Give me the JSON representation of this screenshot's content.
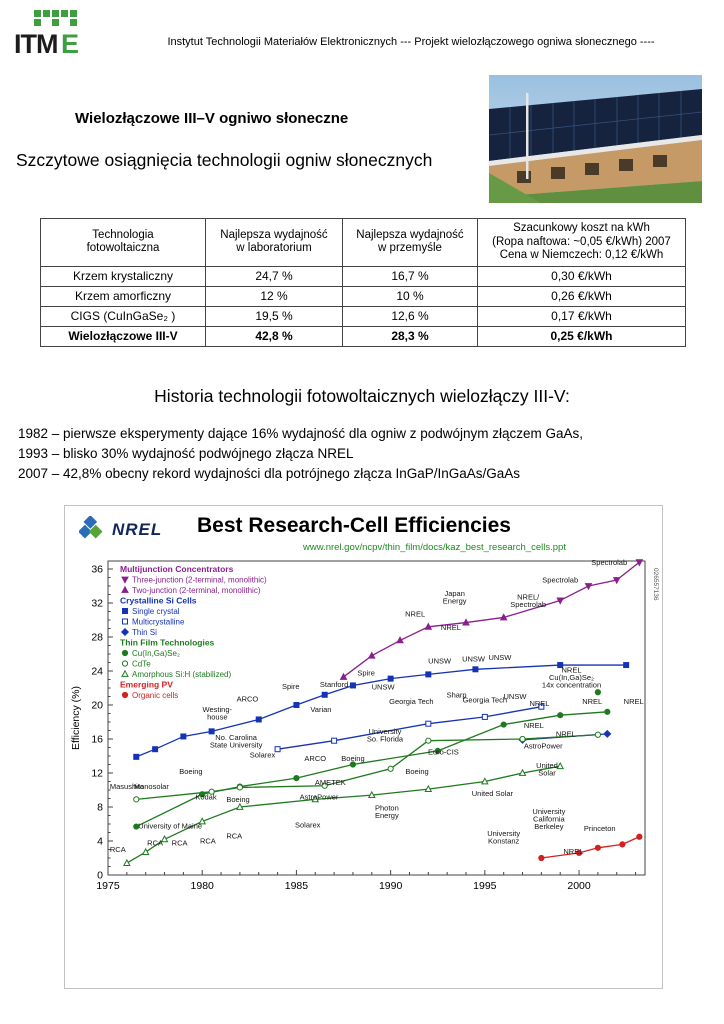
{
  "header": {
    "logo_text": "ITME",
    "text": "Instytut Technologii Materiałów Elektronicznych --- Projekt wielozłączowego ogniwa słonecznego ----"
  },
  "title": "Wielozłączowe III–V ogniwo słoneczne",
  "subtitle": "Szczytowe osiągnięcia technologii ogniw słonecznych",
  "table": {
    "headers": [
      "Technologia\nfotowoltaiczna",
      "Najlepsza wydajność\nw laboratorium",
      "Najlepsza wydajność\nw przemyśle",
      "Szacunkowy koszt na kWh\n(Ropa naftowa: ~0,05 €/kWh) 2007\nCena w Niemczech: 0,12 €/kWh"
    ],
    "rows": [
      {
        "cells": [
          "Krzem krystaliczny",
          "24,7 %",
          "16,7 %",
          "0,30 €/kWh"
        ],
        "bold": false
      },
      {
        "cells": [
          "Krzem amorficzny",
          "12 %",
          "10 %",
          "0,26 €/kWh"
        ],
        "bold": false
      },
      {
        "cells": [
          "CIGS (CuInGaSe₂ )",
          "19,5 %",
          "12,6 %",
          "0,17 €/kWh"
        ],
        "bold": false
      },
      {
        "cells": [
          "Wielozłączowe III-V",
          "42,8 %",
          "28,3 %",
          "0,25 €/kWh"
        ],
        "bold": true
      }
    ]
  },
  "history": {
    "heading": "Historia technologii fotowoltaicznych wielozłączy III-V:",
    "lines": [
      "1982 – pierwsze eksperymenty dające 16% wydajność dla ogniw z podwójnym złączem GaAs,",
      "1993 – blisko 30% wydajność podwójnego złącza NREL",
      "2007 – 42,8% obecny rekord wydajności dla potrójnego złącza InGaP/InGaAs/GaAs"
    ]
  },
  "chart_data": {
    "type": "line",
    "title": "Best Research-Cell Efficiencies",
    "url": "www.nrel.gov/ncpv/thin_film/docs/kaz_best_research_cells.ppt",
    "logo_label": "NREL",
    "ylabel": "Efficiency (%)",
    "xlim": [
      1975,
      2003.5
    ],
    "ylim": [
      0,
      36
    ],
    "x_ticks": [
      1975,
      1980,
      1985,
      1990,
      1995,
      2000
    ],
    "y_ticks": [
      0,
      4,
      8,
      12,
      16,
      20,
      24,
      28,
      32,
      36
    ],
    "side_code": "026557136",
    "grid": false,
    "legend_position": "upper-left",
    "legend": [
      {
        "title": "Multijunction Concentrators",
        "color": "#8a1f8f",
        "items": [
          {
            "marker": "triangle-down",
            "filled": true,
            "label": "Three-junction (2-terminal, monolithic)"
          },
          {
            "marker": "triangle-up",
            "filled": true,
            "label": "Two-junction (2-terminal, monolithic)"
          }
        ]
      },
      {
        "title": "Crystalline Si Cells",
        "color": "#1533b4",
        "items": [
          {
            "marker": "square",
            "filled": true,
            "label": "Single crystal"
          },
          {
            "marker": "square",
            "filled": false,
            "label": "Multicrystalline"
          },
          {
            "marker": "diamond",
            "filled": true,
            "label": "Thin Si"
          }
        ]
      },
      {
        "title": "Thin Film Technologies",
        "color": "#1f7a1f",
        "items": [
          {
            "marker": "circle",
            "filled": true,
            "label": "Cu(In,Ga)Se₂"
          },
          {
            "marker": "circle",
            "filled": false,
            "label": "CdTe"
          },
          {
            "marker": "triangle-up",
            "filled": false,
            "label": "Amorphous Si:H (stabilized)"
          }
        ]
      },
      {
        "title": "Emerging PV",
        "color": "#d42020",
        "items": [
          {
            "marker": "circle",
            "filled": true,
            "label": "Organic cells"
          }
        ]
      }
    ],
    "series": [
      {
        "name": "Three-junction (2-terminal, monolithic)",
        "color": "#8a1f8f",
        "marker": "triangle-down",
        "filled": true,
        "points": [
          [
            1999,
            32.3
          ],
          [
            2000.5,
            34.0
          ],
          [
            2002,
            34.7
          ],
          [
            2003.2,
            36.8
          ]
        ]
      },
      {
        "name": "Two-junction (2-terminal, monolithic)",
        "color": "#8a1f8f",
        "marker": "triangle-up",
        "filled": true,
        "points": [
          [
            1987.5,
            23.3
          ],
          [
            1989,
            25.8
          ],
          [
            1990.5,
            27.6
          ],
          [
            1992,
            29.2
          ],
          [
            1994,
            29.7
          ],
          [
            1996,
            30.3
          ]
        ]
      },
      {
        "name": "Single crystal Si",
        "color": "#1533b4",
        "marker": "square",
        "filled": true,
        "points": [
          [
            1976.5,
            13.9
          ],
          [
            1977.5,
            14.8
          ],
          [
            1979,
            16.3
          ],
          [
            1980.5,
            16.9
          ],
          [
            1983,
            18.3
          ],
          [
            1985,
            20.0
          ],
          [
            1986.5,
            21.2
          ],
          [
            1988,
            22.3
          ],
          [
            1990,
            23.1
          ],
          [
            1992,
            23.6
          ],
          [
            1994.5,
            24.2
          ],
          [
            1999,
            24.7
          ],
          [
            2002.5,
            24.7
          ]
        ]
      },
      {
        "name": "Multicrystalline Si",
        "color": "#1533b4",
        "marker": "square",
        "filled": false,
        "points": [
          [
            1984,
            14.8
          ],
          [
            1987,
            15.8
          ],
          [
            1992,
            17.8
          ],
          [
            1995,
            18.6
          ],
          [
            1998,
            19.8
          ]
        ]
      },
      {
        "name": "Thin Si",
        "color": "#1533b4",
        "marker": "diamond",
        "filled": true,
        "points": [
          [
            1997,
            15.9
          ],
          [
            2001.5,
            16.6
          ]
        ]
      },
      {
        "name": "Cu(In,Ga)Se₂",
        "color": "#1f7a1f",
        "marker": "circle",
        "filled": true,
        "points": [
          [
            1976.5,
            5.7
          ],
          [
            1980,
            9.5
          ],
          [
            1982,
            10.4
          ],
          [
            1985,
            11.4
          ],
          [
            1988,
            13.0
          ],
          [
            1992.5,
            14.6
          ],
          [
            1996,
            17.7
          ],
          [
            1999,
            18.8
          ],
          [
            2001.5,
            19.2
          ]
        ]
      },
      {
        "name": "Cu(In,Ga)Se₂ 14x concentration",
        "color": "#1f7a1f",
        "marker": "circle",
        "filled": true,
        "points": [
          [
            2001,
            21.5
          ]
        ]
      },
      {
        "name": "CdTe",
        "color": "#1f7a1f",
        "marker": "circle",
        "filled": false,
        "points": [
          [
            1976.5,
            8.9
          ],
          [
            1980.5,
            9.8
          ],
          [
            1982,
            10.3
          ],
          [
            1986.5,
            10.5
          ],
          [
            1990,
            12.5
          ],
          [
            1992,
            15.8
          ],
          [
            1997,
            16.0
          ],
          [
            2001,
            16.5
          ]
        ]
      },
      {
        "name": "Amorphous Si:H (stabilized)",
        "color": "#1f7a1f",
        "marker": "triangle-up",
        "filled": false,
        "points": [
          [
            1976,
            1.4
          ],
          [
            1977,
            2.7
          ],
          [
            1978,
            4.2
          ],
          [
            1980,
            6.3
          ],
          [
            1982,
            8.0
          ],
          [
            1986,
            8.9
          ],
          [
            1989,
            9.4
          ],
          [
            1992,
            10.1
          ],
          [
            1995,
            11.0
          ],
          [
            1997,
            12.0
          ],
          [
            1999,
            12.8
          ]
        ]
      },
      {
        "name": "Organic cells",
        "color": "#d42020",
        "marker": "circle",
        "filled": true,
        "points": [
          [
            1998,
            2.0
          ],
          [
            2000,
            2.6
          ],
          [
            2001,
            3.2
          ],
          [
            2002.3,
            3.6
          ],
          [
            2003.2,
            4.5
          ]
        ]
      }
    ],
    "connectors": [
      {
        "from": [
          1996,
          30.3
        ],
        "to": [
          1999,
          32.3
        ],
        "color": "#8a1f8f"
      }
    ],
    "annotations": [
      {
        "text": "Spectrolab",
        "x": 2001.6,
        "y": 36.5
      },
      {
        "text": "Spectrolab",
        "x": 1999.0,
        "y": 34.4
      },
      {
        "text": "NREL/\nSpectrolab",
        "x": 1997.3,
        "y": 32.4
      },
      {
        "text": "Japan\nEnergy",
        "x": 1993.4,
        "y": 32.8
      },
      {
        "text": "NREL",
        "x": 1991.3,
        "y": 30.4
      },
      {
        "text": "NREL",
        "x": 1993.2,
        "y": 28.8
      },
      {
        "text": "UNSW",
        "x": 1992.6,
        "y": 24.9
      },
      {
        "text": "UNSW",
        "x": 1994.4,
        "y": 25.1
      },
      {
        "text": "UNSW",
        "x": 1995.8,
        "y": 25.3
      },
      {
        "text": "UNSW",
        "x": 1989.6,
        "y": 21.8
      },
      {
        "text": "Spire",
        "x": 1984.7,
        "y": 21.9
      },
      {
        "text": "Stanford",
        "x": 1987.0,
        "y": 22.1
      },
      {
        "text": "Spire",
        "x": 1988.7,
        "y": 23.5
      },
      {
        "text": "ARCO",
        "x": 1982.4,
        "y": 20.4
      },
      {
        "text": "Varian",
        "x": 1986.3,
        "y": 19.2
      },
      {
        "text": "Westing-\nhouse",
        "x": 1980.8,
        "y": 19.2
      },
      {
        "text": "No. Carolina\nState University",
        "x": 1981.8,
        "y": 15.9
      },
      {
        "text": "Georgia Tech",
        "x": 1991.1,
        "y": 20.1
      },
      {
        "text": "Sharp",
        "x": 1993.5,
        "y": 20.9
      },
      {
        "text": "Georgia Tech",
        "x": 1995.0,
        "y": 20.3
      },
      {
        "text": "UNSW",
        "x": 1996.6,
        "y": 20.7
      },
      {
        "text": "NREL",
        "x": 1997.9,
        "y": 19.9
      },
      {
        "text": "NREL",
        "x": 2000.7,
        "y": 20.1
      },
      {
        "text": "NREL",
        "x": 2002.9,
        "y": 20.1
      },
      {
        "text": "NREL\nCu(In,Ga)Se₂\n14x concentration",
        "x": 1999.6,
        "y": 23.8
      },
      {
        "text": "NREL",
        "x": 1997.6,
        "y": 17.3
      },
      {
        "text": "NREL",
        "x": 1999.3,
        "y": 16.3
      },
      {
        "text": "AstroPower",
        "x": 1998.1,
        "y": 14.9
      },
      {
        "text": "United\nSolar",
        "x": 1998.3,
        "y": 12.6
      },
      {
        "text": "United Solar",
        "x": 1995.4,
        "y": 9.3
      },
      {
        "text": "University\nSo. Florida",
        "x": 1989.7,
        "y": 16.6
      },
      {
        "text": "Euro-CIS",
        "x": 1992.8,
        "y": 14.2
      },
      {
        "text": "Boeing",
        "x": 1991.4,
        "y": 11.9
      },
      {
        "text": "AMETEK",
        "x": 1986.8,
        "y": 10.6
      },
      {
        "text": "ARCO",
        "x": 1986.0,
        "y": 13.4
      },
      {
        "text": "Boeing",
        "x": 1988.0,
        "y": 13.4
      },
      {
        "text": "Solarex",
        "x": 1983.2,
        "y": 13.8
      },
      {
        "text": "Boeing",
        "x": 1979.4,
        "y": 11.9
      },
      {
        "text": "Masushita",
        "x": 1975.1,
        "y": 10.1,
        "anchor": "start"
      },
      {
        "text": "Monosolar",
        "x": 1977.3,
        "y": 10.1
      },
      {
        "text": "Kodak",
        "x": 1980.2,
        "y": 8.9
      },
      {
        "text": "Boeing",
        "x": 1981.9,
        "y": 8.6
      },
      {
        "text": "AstroPower",
        "x": 1986.2,
        "y": 8.9
      },
      {
        "text": "Photon\nEnergy",
        "x": 1989.8,
        "y": 7.6
      },
      {
        "text": "Solarex",
        "x": 1985.6,
        "y": 5.6
      },
      {
        "text": "University of Maine",
        "x": 1978.3,
        "y": 5.5
      },
      {
        "text": "RCA",
        "x": 1975.1,
        "y": 2.7,
        "anchor": "start"
      },
      {
        "text": "RCA",
        "x": 1977.5,
        "y": 3.5
      },
      {
        "text": "RCA",
        "x": 1978.8,
        "y": 3.5
      },
      {
        "text": "RCA",
        "x": 1980.3,
        "y": 3.7
      },
      {
        "text": "RCA",
        "x": 1981.7,
        "y": 4.3
      },
      {
        "text": "University\nKonstanz",
        "x": 1996.0,
        "y": 4.6
      },
      {
        "text": "University\nCalifornia\nBerkeley",
        "x": 1998.4,
        "y": 7.2
      },
      {
        "text": "Princeton",
        "x": 2001.1,
        "y": 5.2
      },
      {
        "text": "NREL",
        "x": 1999.7,
        "y": 2.5
      }
    ]
  }
}
